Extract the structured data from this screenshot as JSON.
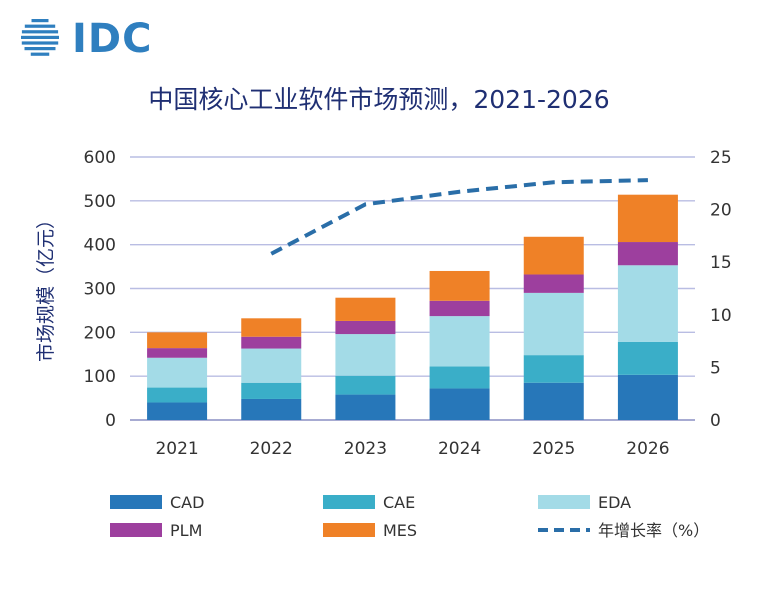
{
  "logo": {
    "text": "IDC"
  },
  "chart_data": {
    "type": "bar",
    "stacked": true,
    "title": "中国核心工业软件市场预测，2021-2026",
    "ylabel": "市场规模（亿元）",
    "categories": [
      "2021",
      "2022",
      "2023",
      "2024",
      "2025",
      "2026"
    ],
    "ylim": [
      0,
      600
    ],
    "yticks": [
      0,
      100,
      200,
      300,
      400,
      500,
      600
    ],
    "y2lim": [
      0,
      25
    ],
    "y2ticks": [
      0,
      5,
      10,
      15,
      20,
      25
    ],
    "grid": true,
    "legend_position": "bottom",
    "series": [
      {
        "name": "CAD",
        "color": "#2777b9",
        "values": [
          40,
          48,
          58,
          72,
          85,
          103
        ]
      },
      {
        "name": "CAE",
        "color": "#3aaec8",
        "values": [
          34,
          37,
          43,
          50,
          63,
          75
        ]
      },
      {
        "name": "EDA",
        "color": "#a3dbe7",
        "values": [
          68,
          78,
          95,
          115,
          142,
          175
        ]
      },
      {
        "name": "PLM",
        "color": "#9d3f9e",
        "values": [
          22,
          27,
          30,
          35,
          42,
          53
        ]
      },
      {
        "name": "MES",
        "color": "#ef8127",
        "values": [
          36,
          42,
          53,
          68,
          86,
          108
        ]
      }
    ],
    "line": {
      "name": "年增长率（%）",
      "color": "#2a6ea8",
      "axis": "right",
      "values": [
        null,
        15.8,
        20.5,
        21.7,
        22.6,
        22.8
      ]
    }
  }
}
